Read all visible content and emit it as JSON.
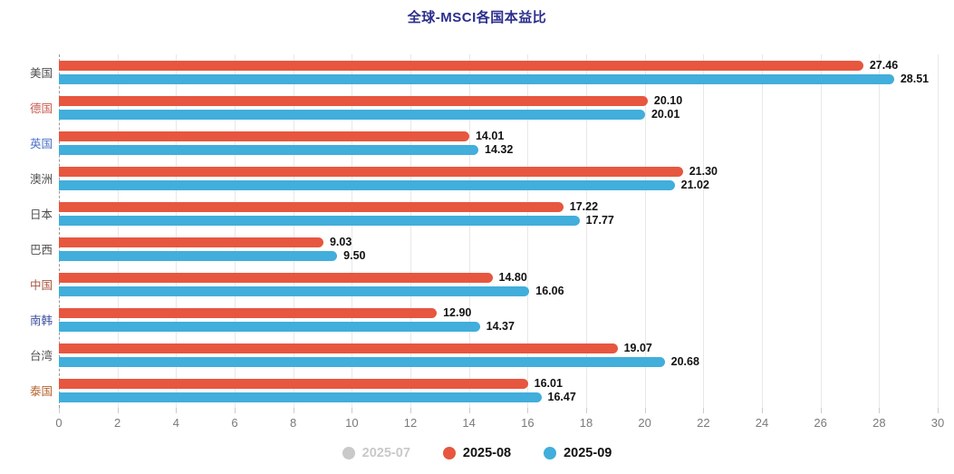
{
  "title": "全球-MSCI各国本益比",
  "title_color": "#2b2e8c",
  "chart_data": {
    "type": "bar",
    "orientation": "horizontal",
    "title": "全球-MSCI各国本益比",
    "categories": [
      "美国",
      "德国",
      "英国",
      "澳洲",
      "日本",
      "巴西",
      "中国",
      "南韩",
      "台湾",
      "泰国"
    ],
    "category_label_colors": [
      "#4d4d4d",
      "#c65a4f",
      "#4a6fc4",
      "#4d4d4d",
      "#4d4d4d",
      "#4d4d4d",
      "#a8543f",
      "#3c4e9e",
      "#4d4d4d",
      "#b4622d"
    ],
    "series": [
      {
        "name": "2025-07",
        "color": "#c9c9c9",
        "visible": false,
        "values": null
      },
      {
        "name": "2025-08",
        "color": "#e7563f",
        "visible": true,
        "values": [
          27.46,
          20.1,
          14.01,
          21.3,
          17.22,
          9.03,
          14.8,
          12.9,
          19.07,
          16.01
        ]
      },
      {
        "name": "2025-09",
        "color": "#41aedb",
        "visible": true,
        "values": [
          28.51,
          20.01,
          14.32,
          21.02,
          17.77,
          9.5,
          16.06,
          14.37,
          20.68,
          16.47
        ]
      }
    ],
    "xlim": [
      0,
      30
    ],
    "x_ticks": [
      0,
      2,
      4,
      6,
      8,
      10,
      12,
      14,
      16,
      18,
      20,
      22,
      24,
      26,
      28,
      30
    ],
    "grid": true,
    "legend_position": "bottom"
  },
  "legend": {
    "items": [
      {
        "label": "2025-07",
        "color": "#c9c9c9",
        "text_color": "#c9c9c9",
        "active": false
      },
      {
        "label": "2025-08",
        "color": "#e7563f",
        "text_color": "#111111",
        "active": true
      },
      {
        "label": "2025-09",
        "color": "#41aedb",
        "text_color": "#111111",
        "active": true
      }
    ]
  },
  "style": {
    "gridline_color": "#e8e8e8",
    "axis_dash_color": "#9a9a9a",
    "tick_label_color": "#7a7a7a",
    "data_label_color": "#111111"
  }
}
